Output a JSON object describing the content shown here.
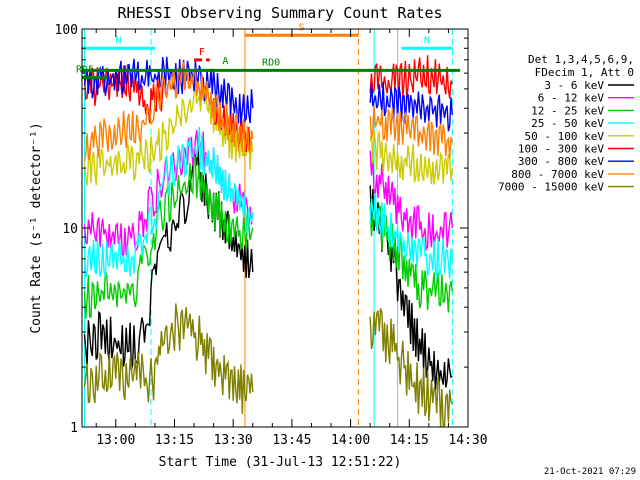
{
  "chart_data": {
    "type": "line",
    "title": "RHESSI Observing Summary Count Rates",
    "xlabel": "Start Time (31-Jul-13 12:51:22)",
    "ylabel": "Count Rate (s⁻¹ detector⁻¹)",
    "yscale": "log",
    "ylim": [
      1,
      100
    ],
    "xlim": [
      "12:51:22",
      "14:30:00"
    ],
    "x_ticks": [
      "13:00",
      "13:15",
      "13:30",
      "13:45",
      "14:00",
      "14:15",
      "14:30"
    ],
    "y_ticks": [
      "1",
      "10",
      "100"
    ],
    "legend": {
      "position": "right",
      "header_lines": [
        "Det 1,3,4,5,6,9,",
        "FDecim 1, Att 0"
      ]
    },
    "series": [
      {
        "name": "3 - 6 keV",
        "color": "#000000",
        "points": [
          [
            "12:52",
            2.6
          ],
          [
            "12:56",
            2.9
          ],
          [
            "13:00",
            2.7
          ],
          [
            "13:05",
            2.5
          ],
          [
            "13:08",
            3.4
          ],
          [
            "13:10",
            5.5
          ],
          [
            "13:13",
            8.5
          ],
          [
            "13:16",
            11
          ],
          [
            "13:19",
            15
          ],
          [
            "13:21",
            20
          ],
          [
            "13:24",
            14
          ],
          [
            "13:27",
            11
          ],
          [
            "13:30",
            8.5
          ],
          [
            "13:33",
            7
          ],
          [
            "13:35",
            6
          ],
          [
            "14:05",
            14
          ],
          [
            "14:08",
            10
          ],
          [
            "14:11",
            7
          ],
          [
            "14:13",
            4.5
          ],
          [
            "14:15",
            3.5
          ],
          [
            "14:18",
            2.5
          ],
          [
            "14:21",
            2
          ],
          [
            "14:24",
            1.7
          ],
          [
            "14:26",
            1.8
          ]
        ]
      },
      {
        "name": "6 - 12 keV",
        "color": "#ff00ff",
        "points": [
          [
            "12:52",
            9.5
          ],
          [
            "12:56",
            10
          ],
          [
            "13:00",
            9
          ],
          [
            "13:05",
            9
          ],
          [
            "13:08",
            12
          ],
          [
            "13:10",
            15
          ],
          [
            "13:13",
            18
          ],
          [
            "13:16",
            22
          ],
          [
            "13:19",
            25
          ],
          [
            "13:21",
            28
          ],
          [
            "13:24",
            22
          ],
          [
            "13:27",
            17
          ],
          [
            "13:30",
            14
          ],
          [
            "13:33",
            13
          ],
          [
            "13:35",
            12
          ],
          [
            "14:05",
            20
          ],
          [
            "14:08",
            17
          ],
          [
            "14:11",
            14
          ],
          [
            "14:13",
            12
          ],
          [
            "14:15",
            11
          ],
          [
            "14:18",
            10
          ],
          [
            "14:21",
            9.5
          ],
          [
            "14:24",
            9.5
          ],
          [
            "14:26",
            10
          ]
        ]
      },
      {
        "name": "12 - 25 keV",
        "color": "#00cc00",
        "points": [
          [
            "12:52",
            4.5
          ],
          [
            "12:56",
            4.7
          ],
          [
            "13:00",
            4.8
          ],
          [
            "13:05",
            5
          ],
          [
            "13:08",
            7.5
          ],
          [
            "13:10",
            10
          ],
          [
            "13:13",
            13
          ],
          [
            "13:16",
            15
          ],
          [
            "13:19",
            17
          ],
          [
            "13:21",
            18
          ],
          [
            "13:24",
            14
          ],
          [
            "13:27",
            11
          ],
          [
            "13:30",
            10
          ],
          [
            "13:33",
            9.5
          ],
          [
            "13:35",
            10
          ],
          [
            "14:05",
            12
          ],
          [
            "14:08",
            10
          ],
          [
            "14:11",
            8
          ],
          [
            "14:13",
            7
          ],
          [
            "14:15",
            6
          ],
          [
            "14:18",
            5
          ],
          [
            "14:21",
            4.7
          ],
          [
            "14:24",
            4.7
          ],
          [
            "14:26",
            4.8
          ]
        ]
      },
      {
        "name": "25 - 50 keV",
        "color": "#00ffff",
        "points": [
          [
            "12:52",
            6.5
          ],
          [
            "12:56",
            7
          ],
          [
            "13:00",
            7
          ],
          [
            "13:05",
            7
          ],
          [
            "13:08",
            10
          ],
          [
            "13:10",
            12
          ],
          [
            "13:13",
            18
          ],
          [
            "13:16",
            21
          ],
          [
            "13:19",
            24
          ],
          [
            "13:21",
            26
          ],
          [
            "13:24",
            22
          ],
          [
            "13:27",
            17
          ],
          [
            "13:30",
            14
          ],
          [
            "13:33",
            12
          ],
          [
            "13:35",
            12
          ],
          [
            "14:05",
            13
          ],
          [
            "14:08",
            11
          ],
          [
            "14:11",
            9.5
          ],
          [
            "14:13",
            8.5
          ],
          [
            "14:15",
            8
          ],
          [
            "14:18",
            7.5
          ],
          [
            "14:21",
            7
          ],
          [
            "14:24",
            7
          ],
          [
            "14:26",
            7
          ]
        ]
      },
      {
        "name": "50 - 100 keV",
        "color": "#cccc00",
        "points": [
          [
            "12:52",
            20
          ],
          [
            "12:56",
            21
          ],
          [
            "13:00",
            21
          ],
          [
            "13:05",
            22
          ],
          [
            "13:08",
            23
          ],
          [
            "13:10",
            25
          ],
          [
            "13:13",
            30
          ],
          [
            "13:16",
            37
          ],
          [
            "13:19",
            42
          ],
          [
            "13:21",
            45
          ],
          [
            "13:24",
            40
          ],
          [
            "13:27",
            32
          ],
          [
            "13:30",
            27
          ],
          [
            "13:33",
            25
          ],
          [
            "13:35",
            24
          ],
          [
            "14:05",
            25
          ],
          [
            "14:08",
            24
          ],
          [
            "14:11",
            23
          ],
          [
            "14:13",
            22
          ],
          [
            "14:15",
            21
          ],
          [
            "14:18",
            21
          ],
          [
            "14:21",
            20
          ],
          [
            "14:24",
            20
          ],
          [
            "14:26",
            20
          ]
        ]
      },
      {
        "name": "100 - 300 keV",
        "color": "#ff0000",
        "points": [
          [
            "12:52",
            50
          ],
          [
            "12:56",
            52
          ],
          [
            "13:00",
            53
          ],
          [
            "13:05",
            54
          ],
          [
            "13:08",
            40
          ],
          [
            "13:10",
            45
          ],
          [
            "13:13",
            50
          ],
          [
            "13:16",
            55
          ],
          [
            "13:19",
            55
          ],
          [
            "13:21",
            52
          ],
          [
            "13:24",
            44
          ],
          [
            "13:27",
            37
          ],
          [
            "13:30",
            32
          ],
          [
            "13:33",
            30
          ],
          [
            "13:35",
            30
          ],
          [
            "14:05",
            55
          ],
          [
            "14:08",
            55
          ],
          [
            "14:11",
            55
          ],
          [
            "14:13",
            55
          ],
          [
            "14:15",
            55
          ],
          [
            "14:18",
            60
          ],
          [
            "14:21",
            58
          ],
          [
            "14:24",
            55
          ],
          [
            "14:26",
            53
          ]
        ]
      },
      {
        "name": "300 - 800 keV",
        "color": "#0000ff",
        "points": [
          [
            "12:52",
            55
          ],
          [
            "12:56",
            56
          ],
          [
            "13:00",
            57
          ],
          [
            "13:05",
            57
          ],
          [
            "13:08",
            58
          ],
          [
            "13:10",
            58
          ],
          [
            "13:13",
            58
          ],
          [
            "13:16",
            58
          ],
          [
            "13:19",
            57
          ],
          [
            "13:21",
            56
          ],
          [
            "13:24",
            52
          ],
          [
            "13:27",
            47
          ],
          [
            "13:30",
            43
          ],
          [
            "13:33",
            41
          ],
          [
            "13:35",
            40
          ],
          [
            "14:05",
            45
          ],
          [
            "14:08",
            44
          ],
          [
            "14:11",
            43
          ],
          [
            "14:13",
            42
          ],
          [
            "14:15",
            42
          ],
          [
            "14:18",
            40
          ],
          [
            "14:21",
            38
          ],
          [
            "14:24",
            37
          ],
          [
            "14:26",
            37
          ]
        ]
      },
      {
        "name": "800 - 7000 keV",
        "color": "#ff8000",
        "points": [
          [
            "12:52",
            27
          ],
          [
            "12:56",
            28
          ],
          [
            "13:00",
            30
          ],
          [
            "13:05",
            32
          ],
          [
            "13:08",
            36
          ],
          [
            "13:10",
            42
          ],
          [
            "13:13",
            50
          ],
          [
            "13:16",
            55
          ],
          [
            "13:19",
            55
          ],
          [
            "13:21",
            52
          ],
          [
            "13:24",
            44
          ],
          [
            "13:27",
            36
          ],
          [
            "13:30",
            31
          ],
          [
            "13:33",
            29
          ],
          [
            "13:35",
            28
          ],
          [
            "14:05",
            35
          ],
          [
            "14:08",
            34
          ],
          [
            "14:11",
            32
          ],
          [
            "14:13",
            31
          ],
          [
            "14:15",
            30
          ],
          [
            "14:18",
            29
          ],
          [
            "14:21",
            28
          ],
          [
            "14:24",
            27
          ],
          [
            "14:26",
            27
          ]
        ]
      },
      {
        "name": "7000 - 15000 keV",
        "color": "#808000",
        "points": [
          [
            "12:52",
            1.6
          ],
          [
            "12:56",
            1.8
          ],
          [
            "13:00",
            1.8
          ],
          [
            "13:05",
            1.8
          ],
          [
            "13:08",
            1.7
          ],
          [
            "13:10",
            1.8
          ],
          [
            "13:13",
            2.8
          ],
          [
            "13:16",
            3.2
          ],
          [
            "13:19",
            3.2
          ],
          [
            "13:21",
            2.8
          ],
          [
            "13:24",
            2.2
          ],
          [
            "13:27",
            1.9
          ],
          [
            "13:30",
            1.8
          ],
          [
            "13:33",
            1.5
          ],
          [
            "13:35",
            1.5
          ],
          [
            "14:05",
            3.2
          ],
          [
            "14:08",
            3
          ],
          [
            "14:11",
            2.5
          ],
          [
            "14:13",
            2.1
          ],
          [
            "14:15",
            1.8
          ],
          [
            "14:18",
            1.5
          ],
          [
            "14:21",
            1.4
          ],
          [
            "14:24",
            1.3
          ],
          [
            "14:26",
            1.3
          ]
        ]
      }
    ],
    "annotations": [
      {
        "label": "N",
        "color": "#00ffff",
        "start": "12:51:22",
        "end": "13:10:00",
        "value": 80
      },
      {
        "label": "N",
        "color": "#00ffff",
        "start": "14:13:00",
        "end": "14:26:00",
        "value": 80
      },
      {
        "label": "S",
        "color": "#ff8000",
        "start": "13:33:00",
        "end": "14:02:00",
        "value": 93
      },
      {
        "label": "F",
        "color": "#ff0000",
        "start": "13:20:00",
        "end": "13:24:00",
        "value": 70
      },
      {
        "label": "RD0",
        "color": "#008000",
        "start": "12:51:22",
        "end": "14:28:00",
        "value": 62
      },
      {
        "label": "RD5",
        "color": "#008000",
        "start": "12:51:22",
        "end": "12:58:00",
        "value": 57
      },
      {
        "label": "A",
        "color": "#008000",
        "start": "13:28:00",
        "end": "13:28:00",
        "value": 63
      }
    ],
    "vlines": [
      {
        "time": "13:09:00",
        "color": "#00ffff",
        "style": "dashed"
      },
      {
        "time": "14:12:00",
        "color": "#00ffff",
        "style": "solid"
      },
      {
        "time": "14:26:00",
        "color": "#00ffff",
        "style": "dashed"
      },
      {
        "time": "13:33:00",
        "color": "#ff8000",
        "style": "solid"
      },
      {
        "time": "14:02:00",
        "color": "#ff8000",
        "style": "dashed"
      },
      {
        "time": "12:52:00",
        "color": "#00ffff",
        "style": "solid"
      },
      {
        "time": "14:06:00",
        "color": "#00ffff",
        "style": "solid"
      }
    ],
    "data_gap": [
      "13:35:00",
      "14:05:00"
    ]
  },
  "footer": {
    "timestamp": "21-Oct-2021 07:29"
  }
}
